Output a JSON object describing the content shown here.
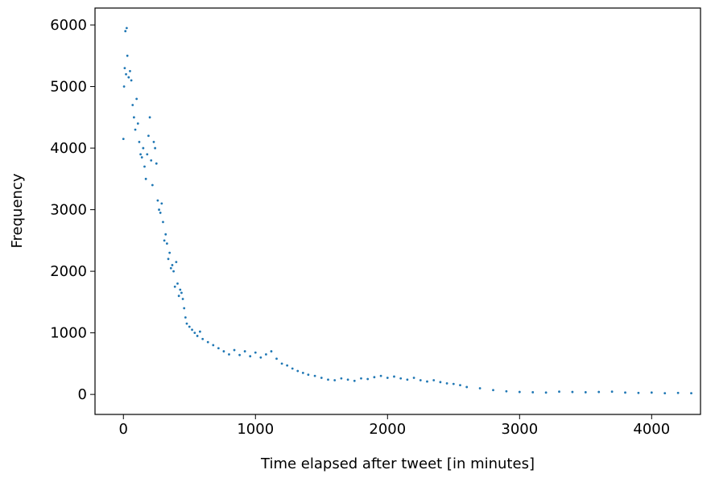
{
  "chart_data": {
    "type": "scatter",
    "x_label": "Time elapsed after tweet [in minutes]",
    "y_label": "Frequency",
    "color": "#1f77b4",
    "xlim": [
      -215,
      4370
    ],
    "ylim": [
      -325,
      6275
    ],
    "xticks": [
      0,
      1000,
      2000,
      3000,
      4000
    ],
    "yticks": [
      0,
      1000,
      2000,
      3000,
      4000,
      5000,
      6000
    ],
    "x": [
      0,
      5,
      10,
      15,
      20,
      25,
      30,
      40,
      50,
      60,
      70,
      80,
      90,
      100,
      110,
      120,
      130,
      140,
      150,
      160,
      170,
      180,
      190,
      200,
      210,
      220,
      230,
      240,
      250,
      260,
      270,
      280,
      290,
      300,
      310,
      320,
      330,
      340,
      350,
      360,
      370,
      380,
      390,
      400,
      410,
      420,
      430,
      440,
      450,
      460,
      470,
      480,
      500,
      520,
      540,
      560,
      580,
      600,
      640,
      680,
      720,
      760,
      800,
      840,
      880,
      920,
      960,
      1000,
      1040,
      1080,
      1120,
      1160,
      1200,
      1240,
      1280,
      1320,
      1360,
      1400,
      1450,
      1500,
      1550,
      1600,
      1650,
      1700,
      1750,
      1800,
      1850,
      1900,
      1950,
      2000,
      2050,
      2100,
      2150,
      2200,
      2250,
      2300,
      2350,
      2400,
      2450,
      2500,
      2550,
      2600,
      2700,
      2800,
      2900,
      3000,
      3100,
      3200,
      3300,
      3400,
      3500,
      3600,
      3700,
      3800,
      3900,
      4000,
      4100,
      4200,
      4300
    ],
    "values": [
      4150,
      5000,
      5300,
      5900,
      5200,
      5950,
      5500,
      5150,
      5250,
      5100,
      4700,
      4500,
      4300,
      4800,
      4400,
      4100,
      3900,
      3850,
      4000,
      3700,
      3500,
      3900,
      4200,
      4500,
      3800,
      3400,
      4100,
      4000,
      3750,
      3150,
      3000,
      2950,
      3100,
      2800,
      2500,
      2600,
      2450,
      2200,
      2300,
      2050,
      2100,
      2000,
      1750,
      2150,
      1800,
      1600,
      1700,
      1650,
      1550,
      1400,
      1250,
      1150,
      1100,
      1050,
      1000,
      950,
      1020,
      900,
      850,
      800,
      750,
      700,
      650,
      720,
      640,
      700,
      620,
      680,
      600,
      650,
      700,
      580,
      500,
      470,
      420,
      380,
      350,
      320,
      300,
      270,
      240,
      230,
      260,
      240,
      220,
      260,
      250,
      280,
      300,
      270,
      290,
      260,
      240,
      270,
      230,
      210,
      230,
      200,
      180,
      170,
      150,
      120,
      100,
      70,
      50,
      40,
      35,
      30,
      45,
      40,
      35,
      40,
      45,
      30,
      25,
      30,
      20,
      25,
      20
    ]
  }
}
